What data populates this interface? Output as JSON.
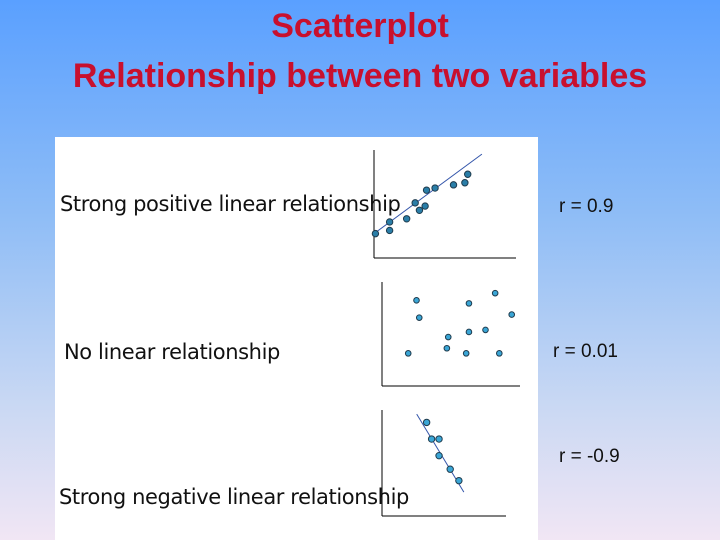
{
  "title": {
    "line1": "Scatterplot",
    "line2": "Relationship between two variables"
  },
  "colors": {
    "title": "#c8102e",
    "point_fill_dark": "#2a7ea8",
    "point_fill_light": "#3aa6d6",
    "point_stroke": "#1f3b4d",
    "fit_line": "#3355aa",
    "axis": "#000000"
  },
  "chart_data": [
    {
      "type": "scatter",
      "label": "Strong positive linear relationship",
      "r_label": "r = 0.9",
      "fit_line": true,
      "xlim": [
        0,
        10
      ],
      "ylim": [
        0,
        10
      ],
      "x": [
        0.1,
        1.1,
        1.1,
        2.3,
        2.9,
        3.2,
        3.6,
        3.7,
        4.3,
        5.6,
        6.4,
        6.6
      ],
      "y": [
        2.3,
        2.6,
        3.4,
        3.7,
        5.2,
        4.5,
        4.9,
        6.4,
        6.6,
        6.9,
        7.1,
        7.9
      ],
      "fit": [
        [
          0.0,
          2.3
        ],
        [
          7.6,
          9.8
        ]
      ]
    },
    {
      "type": "scatter",
      "label": "No linear relationship",
      "r_label": "r = 0.01",
      "fit_line": false,
      "xlim": [
        0,
        10
      ],
      "ylim": [
        0,
        10
      ],
      "x": [
        1.9,
        2.5,
        2.7,
        4.7,
        4.8,
        6.1,
        6.3,
        6.3,
        7.5,
        8.2,
        8.5,
        9.4
      ],
      "y": [
        3.2,
        8.4,
        6.7,
        3.7,
        4.8,
        3.2,
        5.3,
        8.1,
        5.5,
        9.1,
        3.2,
        7.0
      ],
      "fit": []
    },
    {
      "type": "scatter",
      "label": "Strong negative linear relationship",
      "r_label": "r = -0.9",
      "fit_line": true,
      "xlim": [
        0,
        10
      ],
      "ylim": [
        0,
        10
      ],
      "x": [
        3.6,
        4.0,
        4.6,
        4.6,
        5.5,
        6.2
      ],
      "y": [
        9.0,
        7.4,
        7.4,
        5.8,
        4.5,
        3.4
      ],
      "fit": [
        [
          2.8,
          9.8
        ],
        [
          6.6,
          2.3
        ]
      ]
    }
  ]
}
